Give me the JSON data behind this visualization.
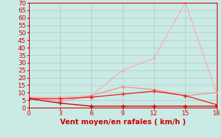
{
  "xlabel": "Vent moyen/en rafales ( km/h )",
  "bg_color": "#caeae5",
  "grid_color": "#b0c8c4",
  "line_rafales_x": [
    0,
    3,
    6,
    9,
    12,
    15,
    18
  ],
  "line_rafales_y": [
    7,
    7,
    8,
    25,
    33,
    70,
    10
  ],
  "line_rafales_color": "#ffaaaa",
  "line_moy2_x": [
    0,
    3,
    6,
    9,
    12,
    15,
    18
  ],
  "line_moy2_y": [
    7,
    4,
    8,
    14,
    12,
    8,
    10
  ],
  "line_moy2_color": "#ff8888",
  "line_min_x": [
    0,
    3,
    6,
    9,
    12,
    15,
    18
  ],
  "line_min_y": [
    6,
    3,
    1,
    1,
    1,
    1,
    1
  ],
  "line_min_color": "#cc0000",
  "line_moy_x": [
    0,
    3,
    6,
    9,
    12,
    15,
    18
  ],
  "line_moy_y": [
    6,
    6,
    7,
    9,
    11,
    8,
    2
  ],
  "line_moy_color": "#ee2222",
  "xlim": [
    0,
    18
  ],
  "ylim": [
    0,
    70
  ],
  "yticks": [
    0,
    5,
    10,
    15,
    20,
    25,
    30,
    35,
    40,
    45,
    50,
    55,
    60,
    65,
    70
  ],
  "xticks": [
    0,
    3,
    6,
    9,
    12,
    15,
    18
  ],
  "xlabel_color": "#cc0000",
  "tick_color": "#cc0000",
  "axis_color": "#cc0000",
  "tick_fontsize": 6.5,
  "xlabel_fontsize": 7.5
}
